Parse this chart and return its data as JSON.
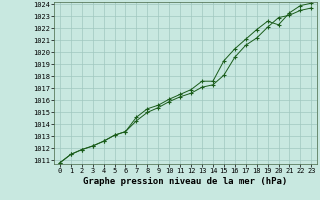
{
  "title": "Graphe pression niveau de la mer (hPa)",
  "bg_color": "#c8e8e0",
  "grid_color": "#a0c8c0",
  "line_color": "#1a5c1a",
  "x_values": [
    0,
    1,
    2,
    3,
    4,
    5,
    6,
    7,
    8,
    9,
    10,
    11,
    12,
    13,
    14,
    15,
    16,
    17,
    18,
    19,
    20,
    21,
    22,
    23
  ],
  "line1": [
    1010.8,
    1011.5,
    1011.9,
    1012.2,
    1012.6,
    1013.1,
    1013.4,
    1014.3,
    1015.0,
    1015.4,
    1015.9,
    1016.3,
    1016.6,
    1017.1,
    1017.3,
    1018.1,
    1019.6,
    1020.6,
    1021.2,
    1022.1,
    1022.9,
    1023.1,
    1023.5,
    1023.7
  ],
  "line2": [
    1010.8,
    1011.5,
    1011.9,
    1012.2,
    1012.6,
    1013.1,
    1013.4,
    1014.6,
    1015.3,
    1015.6,
    1016.1,
    1016.5,
    1016.9,
    1017.6,
    1017.6,
    1019.3,
    1020.3,
    1021.1,
    1021.9,
    1022.6,
    1022.3,
    1023.3,
    1023.9,
    1024.1
  ],
  "ylim_min": 1011.0,
  "ylim_max": 1024.2,
  "yticks": [
    1011,
    1012,
    1013,
    1014,
    1015,
    1016,
    1017,
    1018,
    1019,
    1020,
    1021,
    1022,
    1023,
    1024
  ],
  "xticks": [
    0,
    1,
    2,
    3,
    4,
    5,
    6,
    7,
    8,
    9,
    10,
    11,
    12,
    13,
    14,
    15,
    16,
    17,
    18,
    19,
    20,
    21,
    22,
    23
  ],
  "title_fontsize": 6.5,
  "tick_fontsize": 5.0,
  "marker": "+"
}
